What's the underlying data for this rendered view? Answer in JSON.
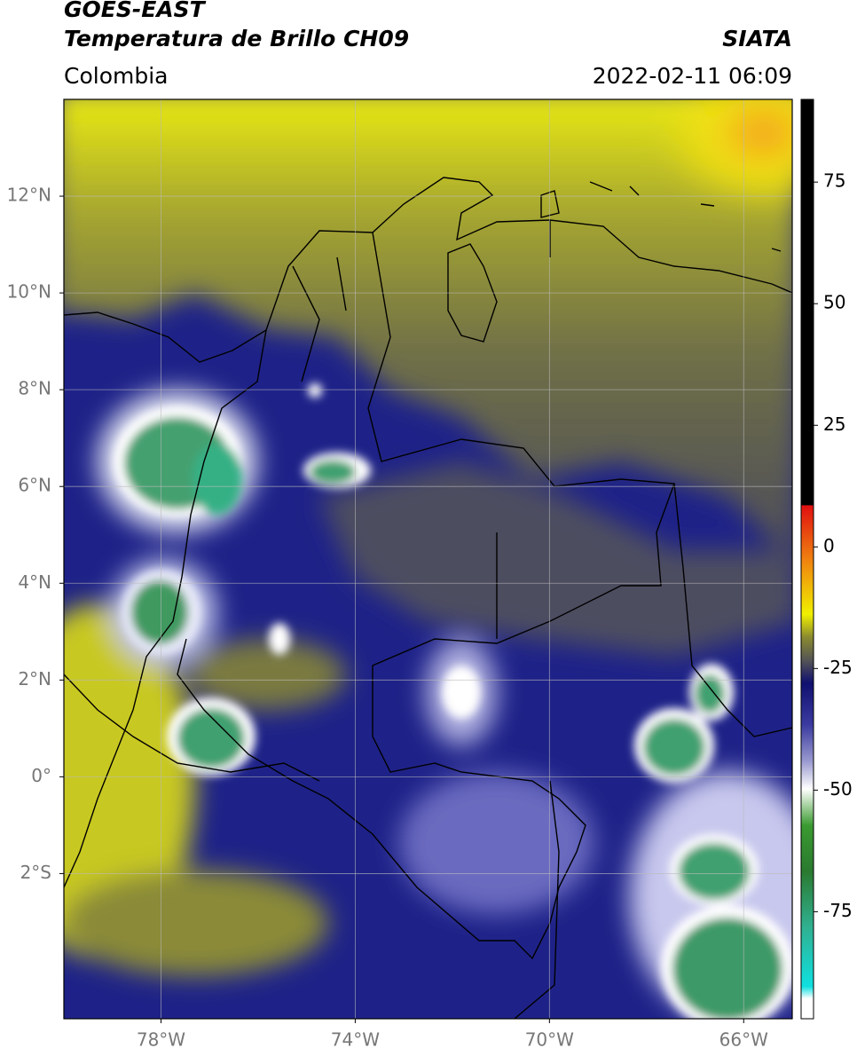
{
  "header": {
    "title": "GOES-EAST",
    "subtitle": "Temperatura de Brillo CH09",
    "source": "SIATA",
    "region": "Colombia",
    "datetime": "2022-02-11 06:09"
  },
  "map": {
    "xlim": [
      -80,
      -65
    ],
    "ylim": [
      -5,
      14
    ],
    "xticks": [
      {
        "value": -78,
        "label": "78°W"
      },
      {
        "value": -74,
        "label": "74°W"
      },
      {
        "value": -70,
        "label": "70°W"
      },
      {
        "value": -66,
        "label": "66°W"
      }
    ],
    "yticks": [
      {
        "value": -2,
        "label": "2°S"
      },
      {
        "value": 0,
        "label": "0°"
      },
      {
        "value": 2,
        "label": "2°N"
      },
      {
        "value": 4,
        "label": "4°N"
      },
      {
        "value": 6,
        "label": "6°N"
      },
      {
        "value": 8,
        "label": "8°N"
      },
      {
        "value": 10,
        "label": "10°N"
      },
      {
        "value": 12,
        "label": "12°N"
      }
    ],
    "grid": true
  },
  "colorbar": {
    "lim": [
      -97,
      92
    ],
    "ticks": [
      -75,
      -50,
      -25,
      0,
      25,
      50,
      75
    ]
  }
}
